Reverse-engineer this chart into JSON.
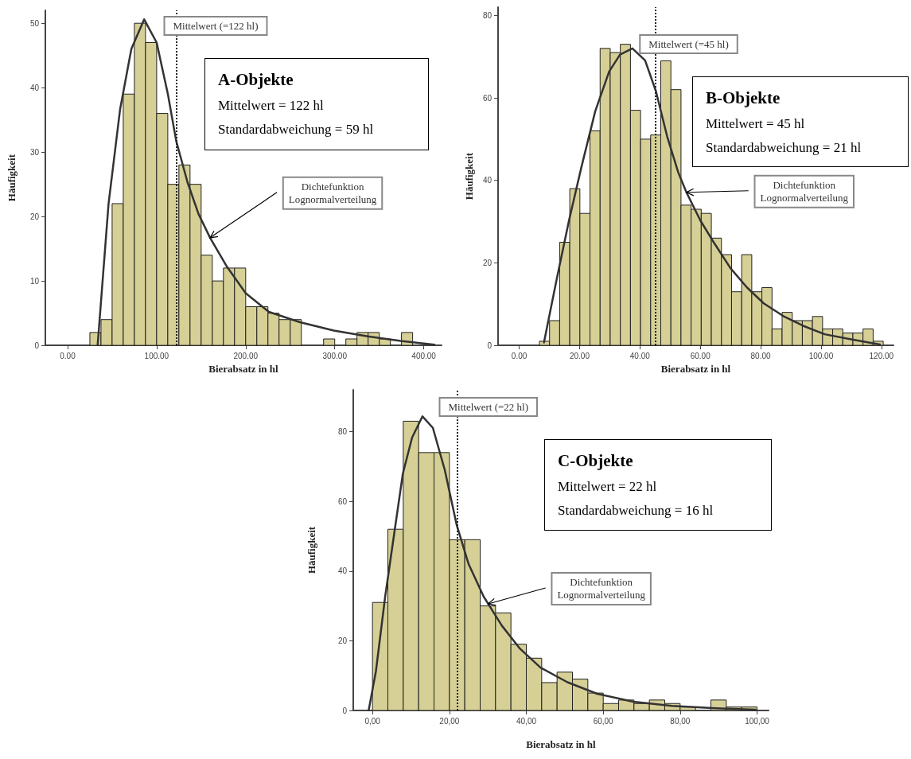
{
  "chart_data": [
    {
      "type": "histogram",
      "title": "A-Objekte",
      "xlabel": "Bierabsatz in hl",
      "ylabel": "Häufigkeit",
      "annotations": [
        "Mittelwert = 122 hl",
        "Standardabweichung = 59 hl",
        {
          "text": "Dichtefunktion\nLognormalverteilung",
          "x": 160,
          "y": 16.7
        }
      ],
      "xlim": [
        -25,
        420
      ],
      "ylim": [
        0,
        52
      ],
      "xticks": [
        {
          "value": 0,
          "label": "0.00"
        },
        {
          "value": 100,
          "label": "100.00"
        },
        {
          "value": 200,
          "label": "200.00"
        },
        {
          "value": 300,
          "label": "300.00"
        },
        {
          "value": 400,
          "label": "400.00"
        }
      ],
      "yticks": [
        0,
        10,
        20,
        30,
        40,
        50
      ],
      "ref_lines": [
        {
          "axis": "x",
          "value": 122,
          "label": "Mittelwert (=122 hl)",
          "line_style": "dotted",
          "color": "#222222"
        }
      ],
      "series": [
        {
          "color": "#d6d096",
          "bins": [
            25,
            37.5,
            50,
            62.5,
            75,
            87.5,
            100,
            112.5,
            125,
            137.5,
            150,
            162.5,
            175,
            187.5,
            200,
            212.5,
            225,
            237.5,
            250,
            262.5,
            275,
            287.5,
            300,
            312.5,
            325,
            337.5,
            350,
            362.5,
            375,
            387.5
          ],
          "values": [
            2,
            4,
            22,
            39,
            50,
            47,
            36,
            25,
            28,
            25,
            14,
            10,
            12,
            12,
            6,
            6,
            5,
            4,
            4,
            0,
            0,
            1,
            0,
            1,
            2,
            2,
            1,
            0,
            2
          ]
        },
        {
          "type": "line",
          "color": "#333333",
          "line_style": "solid",
          "marker": "none",
          "x": [
            33.7,
            46,
            59,
            71.6,
            86,
            100,
            112.6,
            122,
            134.7,
            147,
            160,
            179,
            200,
            226,
            261,
            299,
            337,
            374,
            412
          ],
          "values": [
            0,
            22,
            36.7,
            46,
            50.6,
            47,
            39,
            31.7,
            25.3,
            20.4,
            16.7,
            12.2,
            8.1,
            5.2,
            3.6,
            2.3,
            1.4,
            0.7,
            0.1
          ]
        }
      ]
    },
    {
      "type": "histogram",
      "title": "B-Objekte",
      "xlabel": "Bierabsatz in hl",
      "ylabel": "Häufigkeit",
      "annotations": [
        "Mittelwert = 45 hl",
        "Standardabweichung = 21 hl",
        {
          "text": "Dichtefunktion\nLognormalverteilung",
          "x": 55.4,
          "y": 37.1
        }
      ],
      "xlim": [
        -7,
        124
      ],
      "ylim": [
        0,
        82
      ],
      "xticks": [
        {
          "value": 0,
          "label": "0.00"
        },
        {
          "value": 20,
          "label": "20.00"
        },
        {
          "value": 40,
          "label": "40.00"
        },
        {
          "value": 60,
          "label": "60.00"
        },
        {
          "value": 80,
          "label": "80.00"
        },
        {
          "value": 100,
          "label": "100.00"
        },
        {
          "value": 120,
          "label": "120.00"
        }
      ],
      "yticks": [
        0,
        20,
        40,
        60,
        80
      ],
      "ref_lines": [
        {
          "axis": "x",
          "value": 45,
          "label": "Mittelwert (=45 hl)",
          "line_style": "dotted",
          "color": "#222222"
        }
      ],
      "series": [
        {
          "color": "#d6d096",
          "bins": [
            6.7,
            10.05,
            13.4,
            16.75,
            20.1,
            23.45,
            26.8,
            30.15,
            33.5,
            36.85,
            40.2,
            43.55,
            46.9,
            50.25,
            53.6,
            56.95,
            60.3,
            63.65,
            67,
            70.35,
            73.7,
            77.05,
            80.4,
            83.75,
            87.1,
            90.45,
            93.8,
            97.15,
            100.5,
            103.85,
            107.2,
            110.55,
            113.9,
            117.25,
            120.6
          ],
          "values": [
            1,
            6,
            25,
            38,
            32,
            52,
            72,
            71,
            73,
            57,
            50,
            51,
            69,
            62,
            34,
            33,
            32,
            26,
            22,
            13,
            22,
            13,
            14,
            4,
            8,
            6,
            6,
            7,
            4,
            4,
            3,
            3,
            4,
            1
          ]
        },
        {
          "type": "line",
          "color": "#333333",
          "line_style": "solid",
          "marker": "none",
          "x": [
            8.2,
            12.4,
            16.5,
            20.6,
            25.2,
            29.8,
            33.4,
            37.5,
            41.7,
            45.3,
            49,
            52.7,
            55.4,
            60,
            64.6,
            70,
            75.5,
            81,
            87.5,
            93.9,
            101.2,
            110.3,
            119.5
          ],
          "values": [
            0.7,
            16,
            30.3,
            43.2,
            56.8,
            66.4,
            70.5,
            72,
            69.1,
            61.6,
            50.7,
            41.9,
            37.1,
            30.3,
            24.8,
            18.7,
            14,
            10.2,
            7.1,
            4.8,
            2.7,
            1.4,
            0.2
          ]
        }
      ]
    },
    {
      "type": "histogram",
      "title": "C-Objekte",
      "xlabel": "Bierabsatz in hl",
      "ylabel": "Häufigkeit",
      "annotations": [
        "Mittelwert = 22 hl",
        "Standardabweichung = 16 hl",
        {
          "text": "Dichtefunktion\nLognormalverteilung",
          "x": 30.1,
          "y": 30.6
        }
      ],
      "xlim": [
        -5,
        103
      ],
      "ylim": [
        0,
        92
      ],
      "xticks": [
        {
          "value": 0,
          "label": "0,00"
        },
        {
          "value": 20,
          "label": "20,00"
        },
        {
          "value": 40,
          "label": "40,00"
        },
        {
          "value": 60,
          "label": "60,00"
        },
        {
          "value": 80,
          "label": "80,00"
        },
        {
          "value": 100,
          "label": "100,00"
        }
      ],
      "yticks": [
        0,
        20,
        40,
        60,
        80
      ],
      "ref_lines": [
        {
          "axis": "x",
          "value": 22,
          "label": "Mittelwert (=22 hl)",
          "line_style": "dotted",
          "color": "#222222"
        }
      ],
      "series": [
        {
          "color": "#d6d096",
          "bins": [
            0,
            4,
            8,
            12,
            16,
            20,
            24,
            28,
            32,
            36,
            40,
            44,
            48,
            52,
            56,
            60,
            64,
            68,
            72,
            76,
            80,
            84,
            88,
            92,
            96,
            100
          ],
          "values": [
            31,
            52,
            83,
            74,
            74,
            49,
            49,
            30,
            28,
            19,
            15,
            8,
            11,
            9,
            5,
            2,
            3,
            2,
            3,
            2,
            1,
            0,
            3,
            1,
            1
          ]
        },
        {
          "type": "line",
          "color": "#333333",
          "line_style": "solid",
          "marker": "none",
          "x": [
            -1,
            0.9,
            3.3,
            5.6,
            7.9,
            10.3,
            13,
            15.7,
            18.8,
            21.9,
            25,
            28.9,
            33.6,
            38.2,
            43.7,
            50.7,
            58.4,
            67.8,
            77.9,
            89.5,
            99.6
          ],
          "values": [
            0,
            11.3,
            32.7,
            50.4,
            68,
            78.3,
            84.4,
            81.1,
            69,
            53.2,
            42,
            32.7,
            24.4,
            17.9,
            12.3,
            8.1,
            4.8,
            2.5,
            1.3,
            0.6,
            0.2
          ]
        }
      ]
    }
  ]
}
